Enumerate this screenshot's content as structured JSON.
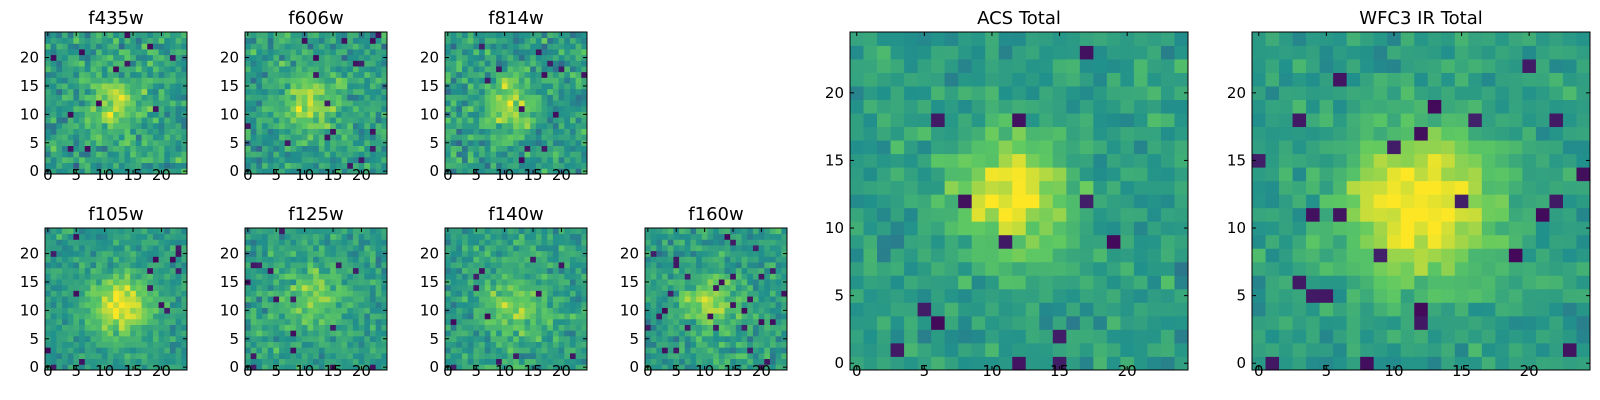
{
  "chart_data": [
    {
      "type": "heatmap",
      "title": "f435w",
      "grid": false,
      "size": 25,
      "xlim": [
        -0.5,
        24.5
      ],
      "ylim": [
        -0.5,
        24.5
      ],
      "xticks": [
        0,
        5,
        10,
        15,
        20
      ],
      "yticks": [
        0,
        5,
        10,
        15,
        20
      ],
      "colormap": "viridis",
      "source": {
        "center": [
          12,
          12
        ],
        "sigma": 3.5,
        "amp": 0.3,
        "noise": 0.55,
        "seed": 11
      }
    },
    {
      "type": "heatmap",
      "title": "f606w",
      "grid": false,
      "size": 25,
      "xlim": [
        -0.5,
        24.5
      ],
      "ylim": [
        -0.5,
        24.5
      ],
      "xticks": [
        0,
        5,
        10,
        15,
        20
      ],
      "yticks": [
        0,
        5,
        10,
        15,
        20
      ],
      "colormap": "viridis",
      "source": {
        "center": [
          11,
          12
        ],
        "sigma": 3.5,
        "amp": 0.35,
        "noise": 0.5,
        "seed": 23
      }
    },
    {
      "type": "heatmap",
      "title": "f814w",
      "grid": false,
      "size": 25,
      "xlim": [
        -0.5,
        24.5
      ],
      "ylim": [
        -0.5,
        24.5
      ],
      "xticks": [
        0,
        5,
        10,
        15,
        20
      ],
      "yticks": [
        0,
        5,
        10,
        15,
        20
      ],
      "colormap": "viridis",
      "source": {
        "center": [
          11,
          12
        ],
        "sigma": 3.5,
        "amp": 0.3,
        "noise": 0.55,
        "seed": 37
      }
    },
    {
      "type": "heatmap",
      "title": "ACS Total",
      "grid": false,
      "size": 25,
      "xlim": [
        -0.5,
        24.5
      ],
      "ylim": [
        -0.5,
        24.5
      ],
      "xticks": [
        0,
        5,
        10,
        15,
        20
      ],
      "yticks": [
        0,
        5,
        10,
        15,
        20
      ],
      "colormap": "viridis",
      "source": {
        "center": [
          11.5,
          12.5
        ],
        "sigma": 3.0,
        "amp": 0.45,
        "noise": 0.35,
        "seed": 51
      }
    },
    {
      "type": "heatmap",
      "title": "WFC3 IR Total",
      "grid": false,
      "size": 25,
      "xlim": [
        -0.5,
        24.5
      ],
      "ylim": [
        -0.5,
        24.5
      ],
      "xticks": [
        0,
        5,
        10,
        15,
        20
      ],
      "yticks": [
        0,
        5,
        10,
        15,
        20
      ],
      "colormap": "viridis",
      "source": {
        "center": [
          12,
          11.5
        ],
        "sigma": 4.0,
        "amp": 0.5,
        "noise": 0.3,
        "seed": 67
      }
    },
    {
      "type": "heatmap",
      "title": "f105w",
      "grid": false,
      "size": 25,
      "xlim": [
        -0.5,
        24.5
      ],
      "ylim": [
        -0.5,
        24.5
      ],
      "xticks": [
        0,
        5,
        10,
        15,
        20
      ],
      "yticks": [
        0,
        5,
        10,
        15,
        20
      ],
      "colormap": "viridis",
      "source": {
        "center": [
          13,
          11
        ],
        "sigma": 3.5,
        "amp": 0.45,
        "noise": 0.35,
        "seed": 79
      }
    },
    {
      "type": "heatmap",
      "title": "f125w",
      "grid": false,
      "size": 25,
      "xlim": [
        -0.5,
        24.5
      ],
      "ylim": [
        -0.5,
        24.5
      ],
      "xticks": [
        0,
        5,
        10,
        15,
        20
      ],
      "yticks": [
        0,
        5,
        10,
        15,
        20
      ],
      "colormap": "viridis",
      "source": {
        "center": [
          12,
          12
        ],
        "sigma": 4.0,
        "amp": 0.25,
        "noise": 0.45,
        "seed": 91
      }
    },
    {
      "type": "heatmap",
      "title": "f140w",
      "grid": false,
      "size": 25,
      "xlim": [
        -0.5,
        24.5
      ],
      "ylim": [
        -0.5,
        24.5
      ],
      "xticks": [
        0,
        5,
        10,
        15,
        20
      ],
      "yticks": [
        0,
        5,
        10,
        15,
        20
      ],
      "colormap": "viridis",
      "source": {
        "center": [
          12,
          11
        ],
        "sigma": 4.0,
        "amp": 0.25,
        "noise": 0.45,
        "seed": 103
      }
    },
    {
      "type": "heatmap",
      "title": "f160w",
      "grid": false,
      "size": 25,
      "xlim": [
        -0.5,
        24.5
      ],
      "ylim": [
        -0.5,
        24.5
      ],
      "xticks": [
        0,
        5,
        10,
        15,
        20
      ],
      "yticks": [
        0,
        5,
        10,
        15,
        20
      ],
      "colormap": "viridis",
      "source": {
        "center": [
          11,
          11
        ],
        "sigma": 3.5,
        "amp": 0.3,
        "noise": 0.45,
        "seed": 117
      }
    }
  ],
  "colors": {
    "colormap_stops": [
      "#440154",
      "#3b528b",
      "#21918c",
      "#5ec962",
      "#fde725"
    ],
    "frame": "#000000",
    "background": "#ffffff"
  }
}
